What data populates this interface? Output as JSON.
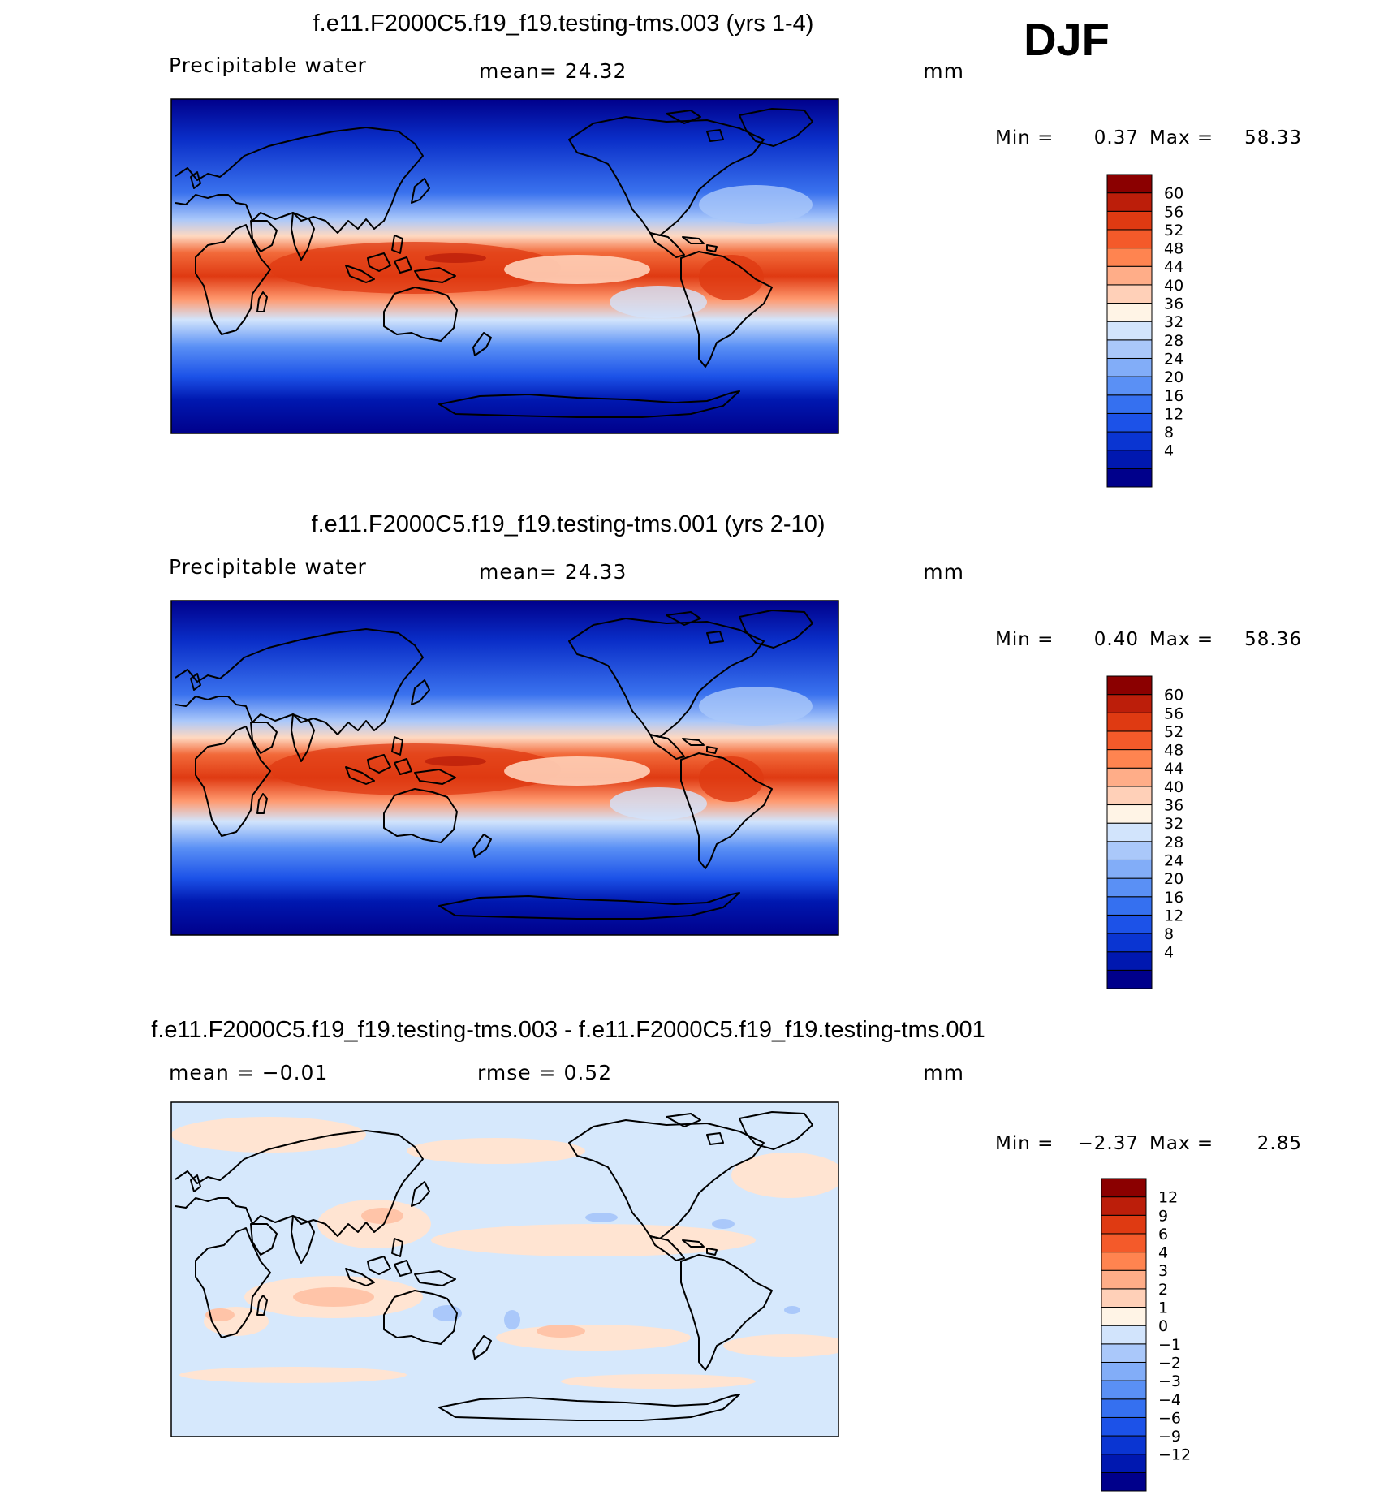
{
  "season": "DJF",
  "panels": [
    {
      "title": "f.e11.F2000C5.f19_f19.testing-tms.003 (yrs 1-4)",
      "left_label": "Precipitable water",
      "center_label": "mean=   24.32",
      "units": "mm",
      "min_label": "Min =",
      "min_value": "0.37",
      "max_label": "Max =",
      "max_value": "58.33",
      "kind": "field",
      "colorbar": {
        "colors": [
          "#00008b",
          "#0018b0",
          "#0a35d2",
          "#1c52e8",
          "#3570f0",
          "#5a90f5",
          "#82adf8",
          "#aac8fa",
          "#d2e4fc",
          "#fff4e6",
          "#ffd0b8",
          "#ffad88",
          "#ff8450",
          "#f45a2a",
          "#df3a12",
          "#bc1e0a",
          "#8b0000"
        ],
        "labels": [
          "60",
          "56",
          "52",
          "48",
          "44",
          "40",
          "36",
          "32",
          "28",
          "24",
          "20",
          "16",
          "12",
          "8",
          "4"
        ]
      }
    },
    {
      "title": "f.e11.F2000C5.f19_f19.testing-tms.001 (yrs 2-10)",
      "left_label": "Precipitable water",
      "center_label": "mean=   24.33",
      "units": "mm",
      "min_label": "Min =",
      "min_value": "0.40",
      "max_label": "Max =",
      "max_value": "58.36",
      "kind": "field",
      "colorbar": {
        "colors": [
          "#00008b",
          "#0018b0",
          "#0a35d2",
          "#1c52e8",
          "#3570f0",
          "#5a90f5",
          "#82adf8",
          "#aac8fa",
          "#d2e4fc",
          "#fff4e6",
          "#ffd0b8",
          "#ffad88",
          "#ff8450",
          "#f45a2a",
          "#df3a12",
          "#bc1e0a",
          "#8b0000"
        ],
        "labels": [
          "60",
          "56",
          "52",
          "48",
          "44",
          "40",
          "36",
          "32",
          "28",
          "24",
          "20",
          "16",
          "12",
          "8",
          "4"
        ]
      }
    },
    {
      "title": "f.e11.F2000C5.f19_f19.testing-tms.003 - f.e11.F2000C5.f19_f19.testing-tms.001",
      "left_label": "mean =   −0.01",
      "center_label": "rmse =    0.52",
      "units": "mm",
      "min_label": "Min =",
      "min_value": "−2.37",
      "max_label": "Max =",
      "max_value": "2.85",
      "kind": "diff",
      "colorbar": {
        "colors": [
          "#00008b",
          "#0018b0",
          "#0a35d2",
          "#1c52e8",
          "#3570f0",
          "#5a90f5",
          "#82adf8",
          "#aac8fa",
          "#d2e4fc",
          "#fff4e6",
          "#ffd0b8",
          "#ffad88",
          "#ff8450",
          "#f45a2a",
          "#df3a12",
          "#bc1e0a",
          "#8b0000"
        ],
        "labels": [
          "12",
          "9",
          "6",
          "4",
          "3",
          "2",
          "1",
          "0",
          "−1",
          "−2",
          "−3",
          "−4",
          "−6",
          "−9",
          "−12"
        ]
      }
    }
  ]
}
